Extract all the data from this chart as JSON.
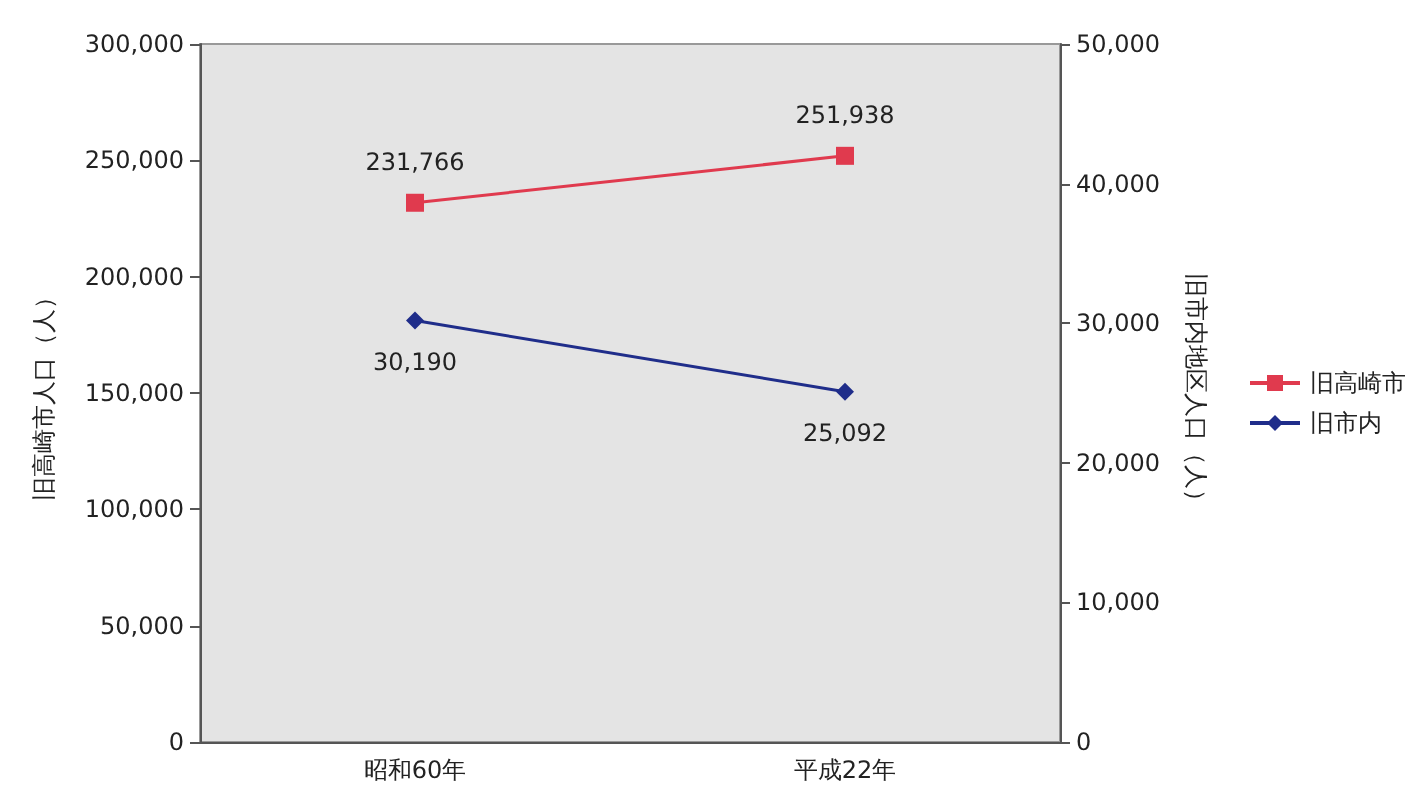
{
  "chart_data": {
    "type": "line",
    "categories": [
      "昭和60年",
      "平成22年"
    ],
    "series": [
      {
        "name": "旧高崎市",
        "color": "#e03a4e",
        "marker": "square",
        "values": [
          231766,
          251938
        ],
        "value_labels": [
          "231,766",
          "251,938"
        ]
      },
      {
        "name": "旧市内",
        "color": "#1f2d8a",
        "marker": "diamond",
        "axis": "y2",
        "values": [
          30190,
          25092
        ],
        "value_labels": [
          "30,190",
          "25,092"
        ]
      }
    ],
    "ylabel": "旧高崎市人口（人）",
    "y2label": "旧市内地区人口（人）",
    "ylim": [
      0,
      300000
    ],
    "yticks": [
      0,
      {
        "value": 50000,
        "label": "50,000"
      },
      {
        "value": 100000,
        "label": "100,000"
      },
      {
        "value": 150000,
        "label": "150,000"
      },
      {
        "value": 200000,
        "label": "200,000"
      },
      {
        "value": 250000,
        "label": "250,000"
      },
      {
        "value": 300000,
        "label": "300,000"
      }
    ],
    "y2lim": [
      0,
      50000
    ],
    "y2ticks": [
      0,
      {
        "value": 10000,
        "label": "10,000"
      },
      {
        "value": 20000,
        "label": "20,000"
      },
      {
        "value": 30000,
        "label": "30,000"
      },
      {
        "value": 40000,
        "label": "40,000"
      },
      {
        "value": 50000,
        "label": "50,000"
      }
    ],
    "legend": "right",
    "grid": false
  }
}
